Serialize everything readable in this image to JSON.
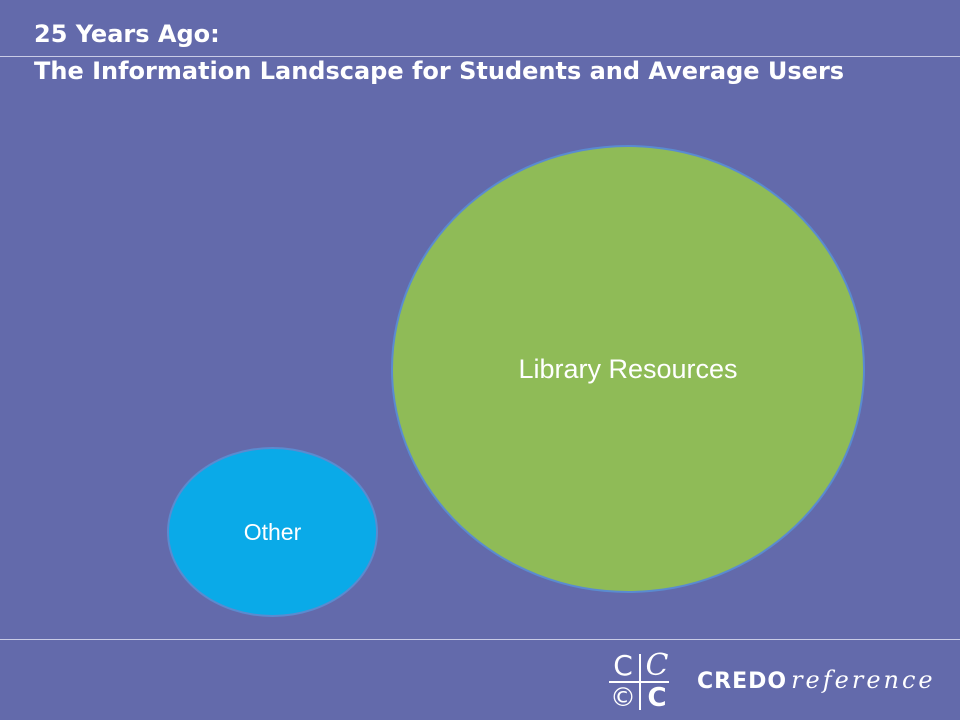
{
  "slide": {
    "title_line1": "25 Years Ago:",
    "title_line2": "The Information Landscape for Students and Average Users",
    "background_color": "#636aab"
  },
  "bubbles": [
    {
      "label": "Library Resources",
      "color": "#8fbb57"
    },
    {
      "label": "Other",
      "color": "#0aaae8"
    }
  ],
  "logo": {
    "mark_glyphs": [
      "C",
      "C",
      "©",
      "C"
    ],
    "wordmark_bold": "CREDO",
    "wordmark_italic": "reference"
  }
}
